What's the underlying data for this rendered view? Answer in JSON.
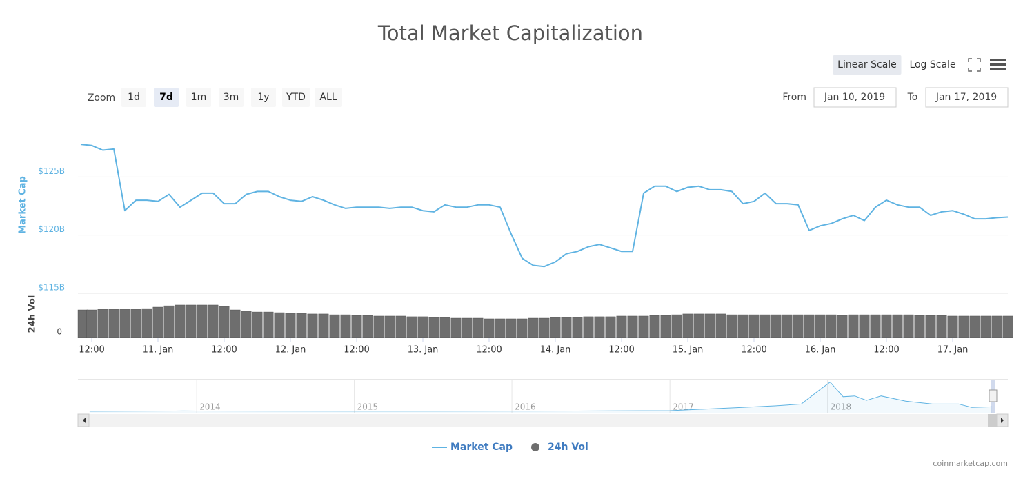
{
  "chart_data": {
    "type": "line",
    "title": "Total Market Capitalization",
    "y_axis_label": "Market Cap",
    "y2_axis_label": "24h Vol",
    "log_scale": false,
    "grid": true,
    "x": [
      "2019-01-10T10:00",
      "2019-01-10T12:00",
      "2019-01-10T14:00",
      "2019-01-10T16:00",
      "2019-01-10T18:00",
      "2019-01-10T20:00",
      "2019-01-10T22:00",
      "2019-01-11T00:00",
      "2019-01-11T02:00",
      "2019-01-11T04:00",
      "2019-01-11T06:00",
      "2019-01-11T08:00",
      "2019-01-11T10:00",
      "2019-01-11T12:00",
      "2019-01-11T14:00",
      "2019-01-11T16:00",
      "2019-01-11T18:00",
      "2019-01-11T20:00",
      "2019-01-11T22:00",
      "2019-01-12T00:00",
      "2019-01-12T02:00",
      "2019-01-12T04:00",
      "2019-01-12T06:00",
      "2019-01-12T08:00",
      "2019-01-12T10:00",
      "2019-01-12T12:00",
      "2019-01-12T14:00",
      "2019-01-12T16:00",
      "2019-01-12T18:00",
      "2019-01-12T20:00",
      "2019-01-12T22:00",
      "2019-01-13T00:00",
      "2019-01-13T02:00",
      "2019-01-13T04:00",
      "2019-01-13T06:00",
      "2019-01-13T08:00",
      "2019-01-13T10:00",
      "2019-01-13T12:00",
      "2019-01-13T14:00",
      "2019-01-13T16:00",
      "2019-01-13T18:00",
      "2019-01-13T20:00",
      "2019-01-13T22:00",
      "2019-01-14T00:00",
      "2019-01-14T02:00",
      "2019-01-14T04:00",
      "2019-01-14T06:00",
      "2019-01-14T08:00",
      "2019-01-14T10:00",
      "2019-01-14T12:00",
      "2019-01-14T14:00",
      "2019-01-14T16:00",
      "2019-01-14T18:00",
      "2019-01-14T20:00",
      "2019-01-14T22:00",
      "2019-01-15T00:00",
      "2019-01-15T02:00",
      "2019-01-15T04:00",
      "2019-01-15T06:00",
      "2019-01-15T08:00",
      "2019-01-15T10:00",
      "2019-01-15T12:00",
      "2019-01-15T14:00",
      "2019-01-15T16:00",
      "2019-01-15T18:00",
      "2019-01-15T20:00",
      "2019-01-15T22:00",
      "2019-01-16T00:00",
      "2019-01-16T02:00",
      "2019-01-16T04:00",
      "2019-01-16T06:00",
      "2019-01-16T08:00",
      "2019-01-16T10:00",
      "2019-01-16T12:00",
      "2019-01-16T14:00",
      "2019-01-16T16:00",
      "2019-01-16T18:00",
      "2019-01-16T20:00",
      "2019-01-16T22:00",
      "2019-01-17T00:00",
      "2019-01-17T02:00",
      "2019-01-17T04:00",
      "2019-01-17T06:00",
      "2019-01-17T08:00",
      "2019-01-17T10:00"
    ],
    "series": [
      {
        "name": "Market Cap",
        "color": "#5fb3e2",
        "values": [
          127.8,
          127.7,
          127.3,
          127.4,
          122.1,
          123.0,
          123.0,
          122.9,
          123.5,
          122.4,
          123.0,
          123.6,
          123.6,
          122.7,
          122.7,
          123.5,
          123.75,
          123.75,
          123.3,
          123.0,
          122.9,
          123.3,
          123.0,
          122.6,
          122.3,
          122.4,
          122.4,
          122.4,
          122.3,
          122.4,
          122.4,
          122.1,
          122.0,
          122.6,
          122.4,
          122.4,
          122.6,
          122.6,
          122.4,
          120.1,
          118.0,
          117.4,
          117.3,
          117.7,
          118.4,
          118.6,
          119.0,
          119.2,
          118.9,
          118.6,
          118.6,
          123.6,
          124.2,
          124.2,
          123.75,
          124.1,
          124.2,
          123.9,
          123.9,
          123.75,
          122.7,
          122.9,
          123.6,
          122.7,
          122.7,
          122.6,
          120.4,
          120.8,
          121.0,
          121.4,
          121.7,
          121.25,
          122.4,
          123.0,
          122.6,
          122.4,
          122.4,
          121.7,
          122.0,
          122.1,
          121.8,
          121.4,
          121.4,
          121.5,
          121.55
        ]
      },
      {
        "name": "24h Vol",
        "color": "#6e6e6e",
        "axis": "y2",
        "values": [
          25,
          25,
          25.6,
          25.6,
          25.6,
          25.6,
          26.2,
          27.5,
          28.7,
          29.4,
          29.4,
          29.4,
          29.4,
          28.1,
          25,
          23.8,
          23.1,
          23.1,
          22.5,
          21.9,
          21.9,
          21.3,
          21.3,
          20.6,
          20.6,
          20,
          20,
          19.4,
          19.4,
          19.4,
          18.8,
          18.8,
          18.1,
          18.1,
          17.5,
          17.5,
          17.5,
          16.9,
          16.9,
          16.9,
          16.9,
          17.5,
          17.5,
          18.1,
          18.1,
          18.1,
          18.8,
          18.8,
          18.8,
          19.4,
          19.4,
          19.4,
          20,
          20,
          20.6,
          21.3,
          21.3,
          21.3,
          21.3,
          20.6,
          20.6,
          20.6,
          20.6,
          20.6,
          20.6,
          20.6,
          20.6,
          20.6,
          20.6,
          20,
          20.6,
          20.6,
          20.6,
          20.6,
          20.6,
          20.6,
          20,
          20,
          20,
          19.4,
          19.4,
          19.4,
          19.4,
          19.4,
          19.4
        ]
      }
    ],
    "xlim": [
      "2019-01-10T09:30",
      "2019-01-17T10:00"
    ],
    "xticks": [
      {
        "value": "2019-01-10T12:00",
        "label": "12:00"
      },
      {
        "value": "2019-01-11T00:00",
        "label": "11. Jan"
      },
      {
        "value": "2019-01-11T12:00",
        "label": "12:00"
      },
      {
        "value": "2019-01-12T00:00",
        "label": "12. Jan"
      },
      {
        "value": "2019-01-12T12:00",
        "label": "12:00"
      },
      {
        "value": "2019-01-13T00:00",
        "label": "13. Jan"
      },
      {
        "value": "2019-01-13T12:00",
        "label": "12:00"
      },
      {
        "value": "2019-01-14T00:00",
        "label": "14. Jan"
      },
      {
        "value": "2019-01-14T12:00",
        "label": "12:00"
      },
      {
        "value": "2019-01-15T00:00",
        "label": "15. Jan"
      },
      {
        "value": "2019-01-15T12:00",
        "label": "12:00"
      },
      {
        "value": "2019-01-16T00:00",
        "label": "16. Jan"
      },
      {
        "value": "2019-01-16T12:00",
        "label": "12:00"
      },
      {
        "value": "2019-01-17T00:00",
        "label": "17. Jan"
      }
    ],
    "ylim": [
      115,
      130
    ],
    "yticks": [
      {
        "value": 115,
        "label": "$115B"
      },
      {
        "value": 120,
        "label": "$120B"
      },
      {
        "value": 125,
        "label": "$125B"
      }
    ],
    "y2lim": [
      0,
      40
    ],
    "y2ticks": [
      0
    ],
    "navigator": {
      "x": [
        "2013-04-28",
        "2013-12-01",
        "2014-01-01",
        "2014-06-01",
        "2015-01-01",
        "2015-06-01",
        "2016-01-01",
        "2016-06-01",
        "2017-01-01",
        "2017-06-01",
        "2017-09-01",
        "2017-11-01",
        "2017-12-15",
        "2018-01-07",
        "2018-02-06",
        "2018-03-05",
        "2018-04-01",
        "2018-05-05",
        "2018-07-01",
        "2018-09-01",
        "2018-11-01",
        "2018-12-01",
        "2019-01-17"
      ],
      "values": [
        1.5,
        12,
        10,
        8,
        5,
        4,
        7,
        10,
        18,
        100,
        150,
        200,
        600,
        800,
        400,
        420,
        300,
        420,
        280,
        200,
        200,
        110,
        125
      ],
      "xlim": [
        "2013-04-01",
        "2019-01-20"
      ],
      "ylim": [
        0,
        830
      ],
      "xticks": [
        {
          "value": "2014-01-01",
          "label": "2014"
        },
        {
          "value": "2015-01-01",
          "label": "2015"
        },
        {
          "value": "2016-01-01",
          "label": "2016"
        },
        {
          "value": "2017-01-01",
          "label": "2017"
        },
        {
          "value": "2018-01-01",
          "label": "2018"
        }
      ]
    }
  },
  "ui": {
    "zoom_label": "Zoom",
    "zoom_buttons": [
      "1d",
      "7d",
      "1m",
      "3m",
      "1y",
      "YTD",
      "ALL"
    ],
    "zoom_selected": 1,
    "from_label": "From",
    "from_date": "Jan 10, 2019",
    "to_label": "To",
    "to_date": "Jan 17, 2019",
    "scale_buttons": [
      "Linear Scale",
      "Log Scale"
    ],
    "credit": "coinmarketcap.com"
  }
}
